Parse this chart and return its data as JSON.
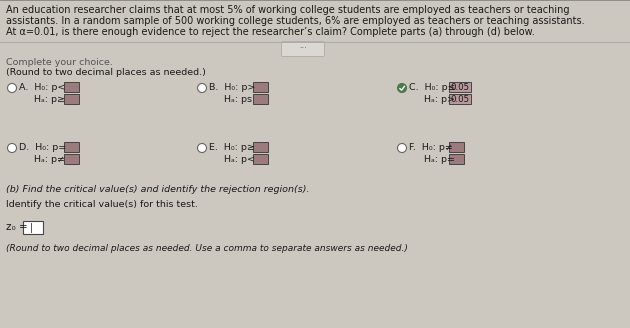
{
  "bg_color": "#cdc8bf",
  "header_bg": "#cdc8bf",
  "header_text_line1": "An education researcher claims that at most 5% of working college students are employed as teachers or teaching",
  "header_text_line2": "assistants. In a random sample of 500 working college students, 6% are employed as teachers or teaching assistants.",
  "header_text_line3": "At α=0.01, is there enough evidence to reject the researcher’s claim? Complete parts (a) through (d) below.",
  "instruction_line1": "Complete your choice.",
  "instruction_line2": "(Round to two decimal places as needed.)",
  "option_A_h0": "A.  H₀: p<",
  "option_A_ha": "     Hₐ: p≥",
  "option_B_h0": "B.  H₀: p>",
  "option_B_ha": "     Hₐ: ps",
  "option_C_h0": "C.  H₀: p≤ ",
  "option_C_ha": "     Hₐ: p> ",
  "option_C_val1": "0.05",
  "option_C_val2": "0.05",
  "option_D_h0": "D.  H₀: p=",
  "option_D_ha": "     Hₐ: p≠",
  "option_E_h0": "E.  H₀: p≥",
  "option_E_ha": "     Hₐ: p<",
  "option_F_h0": "F.  H₀: p≠",
  "option_F_ha": "     Hₐ: p=",
  "part_b_text": "(b) Find the critical value(s) and identify the rejection region(s).",
  "identify_text": "Identify the critical value(s) for this test.",
  "z0_label": "z₀ =",
  "round_text": "(Round to two decimal places as needed. Use a comma to separate answers as needed.)",
  "box_fill": "#9b7b7b",
  "highlight_fill": "#b89898",
  "white_box_fill": "#ffffff",
  "text_color": "#1a1a1a",
  "radio_border": "#666666",
  "check_green": "#4a7a4a",
  "divider_color": "#aaaaaa",
  "border_color": "#888888"
}
